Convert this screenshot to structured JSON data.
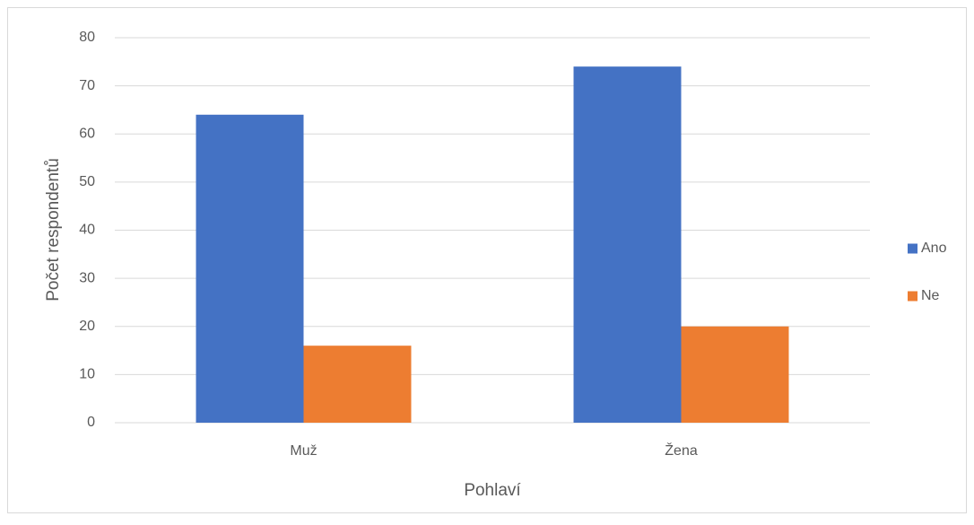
{
  "chart_data": {
    "type": "bar",
    "x_label": "Pohlaví",
    "y_label": "Počet respondentů",
    "categories": [
      "Muž",
      "Žena"
    ],
    "series": [
      {
        "name": "Ano",
        "color": "#4472c4",
        "values": [
          64,
          74
        ]
      },
      {
        "name": "Ne",
        "color": "#ed7d31",
        "values": [
          16,
          20
        ]
      }
    ],
    "ylim": [
      0,
      80
    ],
    "yticks": [
      0,
      10,
      20,
      30,
      40,
      50,
      60,
      70,
      80
    ],
    "grid": true,
    "legend": "right"
  }
}
